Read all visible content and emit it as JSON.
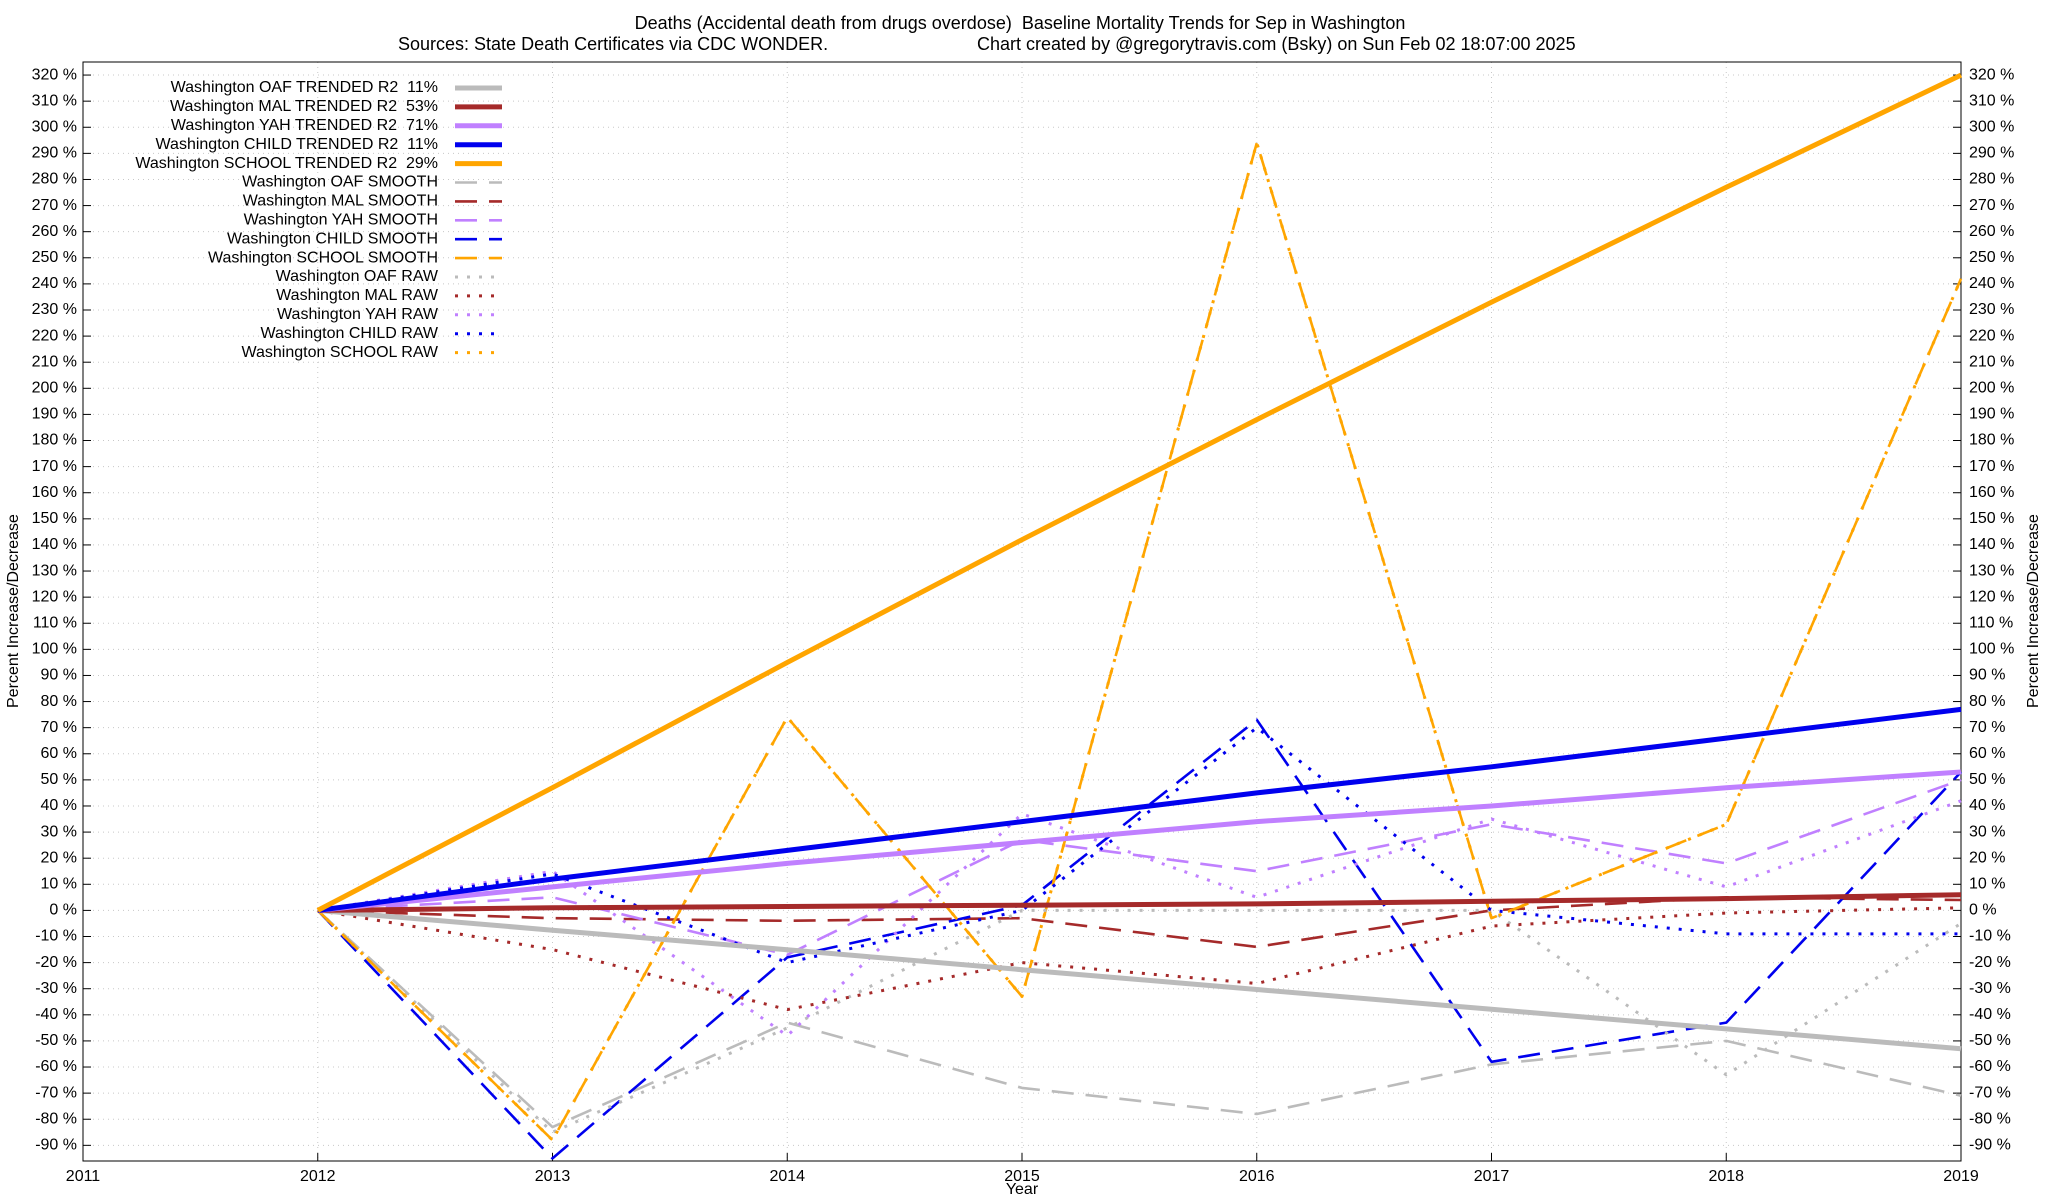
{
  "chart_data": {
    "type": "line",
    "title": "Deaths (Accidental death from drugs overdose)  Baseline Mortality Trends for Sep in Washington",
    "subtitle": "Sources: State Death Certificates via CDC WONDER.",
    "credit": "Chart created by @gregorytravis.com (Bsky) on Sun Feb 02 18:07:00 2025",
    "x_label": "Year",
    "y_label": "Percent Increase/Decrease",
    "xlim": [
      2011,
      2019
    ],
    "xticks": [
      2011,
      2012,
      2013,
      2014,
      2015,
      2016,
      2017,
      2018,
      2019
    ],
    "ylim": [
      -96,
      325
    ],
    "yticks": [
      {
        "value": -90,
        "label": "-90 %"
      },
      {
        "value": -80,
        "label": "-80 %"
      },
      {
        "value": -70,
        "label": "-70 %"
      },
      {
        "value": -60,
        "label": "-60 %"
      },
      {
        "value": -50,
        "label": "-50 %"
      },
      {
        "value": -40,
        "label": "-40 %"
      },
      {
        "value": -30,
        "label": "-30 %"
      },
      {
        "value": -20,
        "label": "-20 %"
      },
      {
        "value": -10,
        "label": "-10 %"
      },
      {
        "value": 0,
        "label": "0 %"
      },
      {
        "value": 10,
        "label": "10 %"
      },
      {
        "value": 20,
        "label": "20 %"
      },
      {
        "value": 30,
        "label": "30 %"
      },
      {
        "value": 40,
        "label": "40 %"
      },
      {
        "value": 50,
        "label": "50 %"
      },
      {
        "value": 60,
        "label": "60 %"
      },
      {
        "value": 70,
        "label": "70 %"
      },
      {
        "value": 80,
        "label": "80 %"
      },
      {
        "value": 90,
        "label": "90 %"
      },
      {
        "value": 100,
        "label": "100 %"
      },
      {
        "value": 110,
        "label": "110 %"
      },
      {
        "value": 120,
        "label": "120 %"
      },
      {
        "value": 130,
        "label": "130 %"
      },
      {
        "value": 140,
        "label": "140 %"
      },
      {
        "value": 150,
        "label": "150 %"
      },
      {
        "value": 160,
        "label": "160 %"
      },
      {
        "value": 170,
        "label": "170 %"
      },
      {
        "value": 180,
        "label": "180 %"
      },
      {
        "value": 190,
        "label": "190 %"
      },
      {
        "value": 200,
        "label": "200 %"
      },
      {
        "value": 210,
        "label": "210 %"
      },
      {
        "value": 220,
        "label": "220 %"
      },
      {
        "value": 230,
        "label": "230 %"
      },
      {
        "value": 240,
        "label": "240 %"
      },
      {
        "value": 250,
        "label": "250 %"
      },
      {
        "value": 260,
        "label": "260 %"
      },
      {
        "value": 270,
        "label": "270 %"
      },
      {
        "value": 280,
        "label": "280 %"
      },
      {
        "value": 290,
        "label": "290 %"
      },
      {
        "value": 300,
        "label": "300 %"
      },
      {
        "value": 310,
        "label": "310 %"
      },
      {
        "value": 320,
        "label": "320 %"
      }
    ],
    "grid": true,
    "legend": "upper-left",
    "x": [
      2012,
      2013,
      2014,
      2015,
      2016,
      2017,
      2018,
      2019
    ],
    "series": [
      {
        "name": "Washington OAF TRENDED R2  11%",
        "color": "#bbbbbb",
        "style": "solid",
        "values": [
          0,
          -7.6,
          -15.1,
          -22.7,
          -30.3,
          -37.9,
          -45.4,
          -53
        ]
      },
      {
        "name": "Washington MAL TRENDED R2  53%",
        "color": "#a52a2a",
        "style": "solid",
        "values": [
          0,
          1,
          1.5,
          2,
          2.5,
          3.5,
          4.5,
          6
        ]
      },
      {
        "name": "Washington YAH TRENDED R2  71%",
        "color": "#c080ff",
        "style": "solid",
        "values": [
          0,
          9,
          18,
          26,
          34,
          40,
          47,
          53
        ]
      },
      {
        "name": "Washington CHILD TRENDED R2  11%",
        "color": "#0000ee",
        "style": "solid",
        "values": [
          0,
          12,
          23,
          34,
          45,
          55,
          66,
          77
        ]
      },
      {
        "name": "Washington SCHOOL TRENDED R2  29%",
        "color": "#ffa500",
        "style": "solid",
        "values": [
          0,
          47,
          95,
          142,
          188,
          233,
          277,
          320
        ]
      },
      {
        "name": "Washington OAF SMOOTH",
        "color": "#bbbbbb",
        "style": "dashed",
        "values": [
          0,
          -83,
          -43,
          -68,
          -78,
          -59,
          -50,
          -71
        ]
      },
      {
        "name": "Washington MAL SMOOTH",
        "color": "#a52a2a",
        "style": "dashed",
        "values": [
          0,
          -3,
          -4,
          -3,
          -14,
          0,
          5,
          4
        ]
      },
      {
        "name": "Washington YAH SMOOTH",
        "color": "#c080ff",
        "style": "dashed",
        "values": [
          0,
          5,
          -17,
          27,
          15,
          33,
          18,
          50
        ]
      },
      {
        "name": "Washington CHILD SMOOTH",
        "color": "#0000ee",
        "style": "dashed",
        "values": [
          0,
          -95,
          -18,
          2,
          73,
          -58,
          -43,
          53
        ]
      },
      {
        "name": "Washington SCHOOL SMOOTH",
        "color": "#ffa500",
        "style": "dashed",
        "values": [
          0,
          -88,
          74,
          -33,
          294,
          -3,
          33,
          242
        ]
      },
      {
        "name": "Washington OAF RAW",
        "color": "#bbbbbb",
        "style": "dotted",
        "values": [
          0,
          -85,
          -45,
          0,
          0,
          0,
          -63,
          -5
        ]
      },
      {
        "name": "Washington MAL RAW",
        "color": "#a52a2a",
        "style": "dotted",
        "values": [
          0,
          -15,
          -38,
          -20,
          -28,
          -6,
          -1,
          1
        ]
      },
      {
        "name": "Washington YAH RAW",
        "color": "#c080ff",
        "style": "dotted",
        "values": [
          0,
          15,
          -48,
          37,
          5,
          35,
          9,
          42
        ]
      },
      {
        "name": "Washington CHILD RAW",
        "color": "#0000ee",
        "style": "dotted",
        "values": [
          0,
          14,
          -20,
          0,
          70,
          0,
          -9,
          -9
        ]
      },
      {
        "name": "Washington SCHOOL RAW",
        "color": "#ffa500",
        "style": "dotted",
        "values": [
          0,
          -88,
          74,
          -33,
          294,
          -3,
          33,
          242
        ]
      }
    ]
  }
}
